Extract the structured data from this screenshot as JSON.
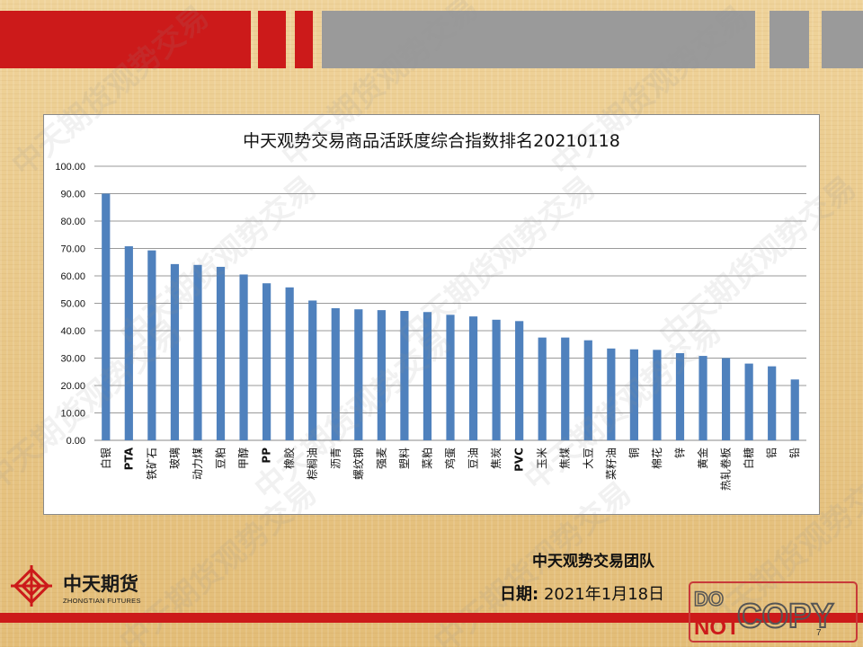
{
  "header": {
    "red_color": "#cc1a1a",
    "gray_color": "#9a9a9a"
  },
  "chart_data": {
    "type": "bar",
    "title": "中天观势交易商品活跃度综合指数排名20210118",
    "xlabel": "",
    "ylabel": "",
    "ylim": [
      0,
      100
    ],
    "yticks": [
      "0.00",
      "10.00",
      "20.00",
      "30.00",
      "40.00",
      "50.00",
      "60.00",
      "70.00",
      "80.00",
      "90.00",
      "100.00"
    ],
    "grid": true,
    "legend": "none",
    "bar_color": "#4f81bd",
    "categories": [
      "白银",
      "PTA",
      "铁矿石",
      "玻璃",
      "动力煤",
      "豆粕",
      "甲醇",
      "PP",
      "橡胶",
      "棕榈油",
      "沥青",
      "螺纹钢",
      "强麦",
      "塑料",
      "菜粕",
      "鸡蛋",
      "豆油",
      "焦炭",
      "PVC",
      "玉米",
      "焦煤",
      "大豆",
      "菜籽油",
      "铜",
      "棉花",
      "锌",
      "黄金",
      "热轧卷板",
      "白糖",
      "铝",
      "铅"
    ],
    "values": [
      90.0,
      70.8,
      69.3,
      64.3,
      64.0,
      63.3,
      60.5,
      57.3,
      55.8,
      51.0,
      48.2,
      47.8,
      47.5,
      47.2,
      46.8,
      45.8,
      45.2,
      44.0,
      43.5,
      37.5,
      37.5,
      36.5,
      33.5,
      33.2,
      33.0,
      31.8,
      30.8,
      30.0,
      28.0,
      27.0,
      22.2
    ]
  },
  "footer": {
    "team": "中天观势交易团队",
    "date_label": "日期:",
    "date_value": "2021年1月18日",
    "logo_name": "中天期货",
    "logo_sub": "ZHONGTIAN FUTURES",
    "stamp_line1": "DO",
    "stamp_line2": "NOT",
    "stamp_word": "COPY",
    "page_number": "7"
  },
  "watermark_text": "中天期货观势交易"
}
